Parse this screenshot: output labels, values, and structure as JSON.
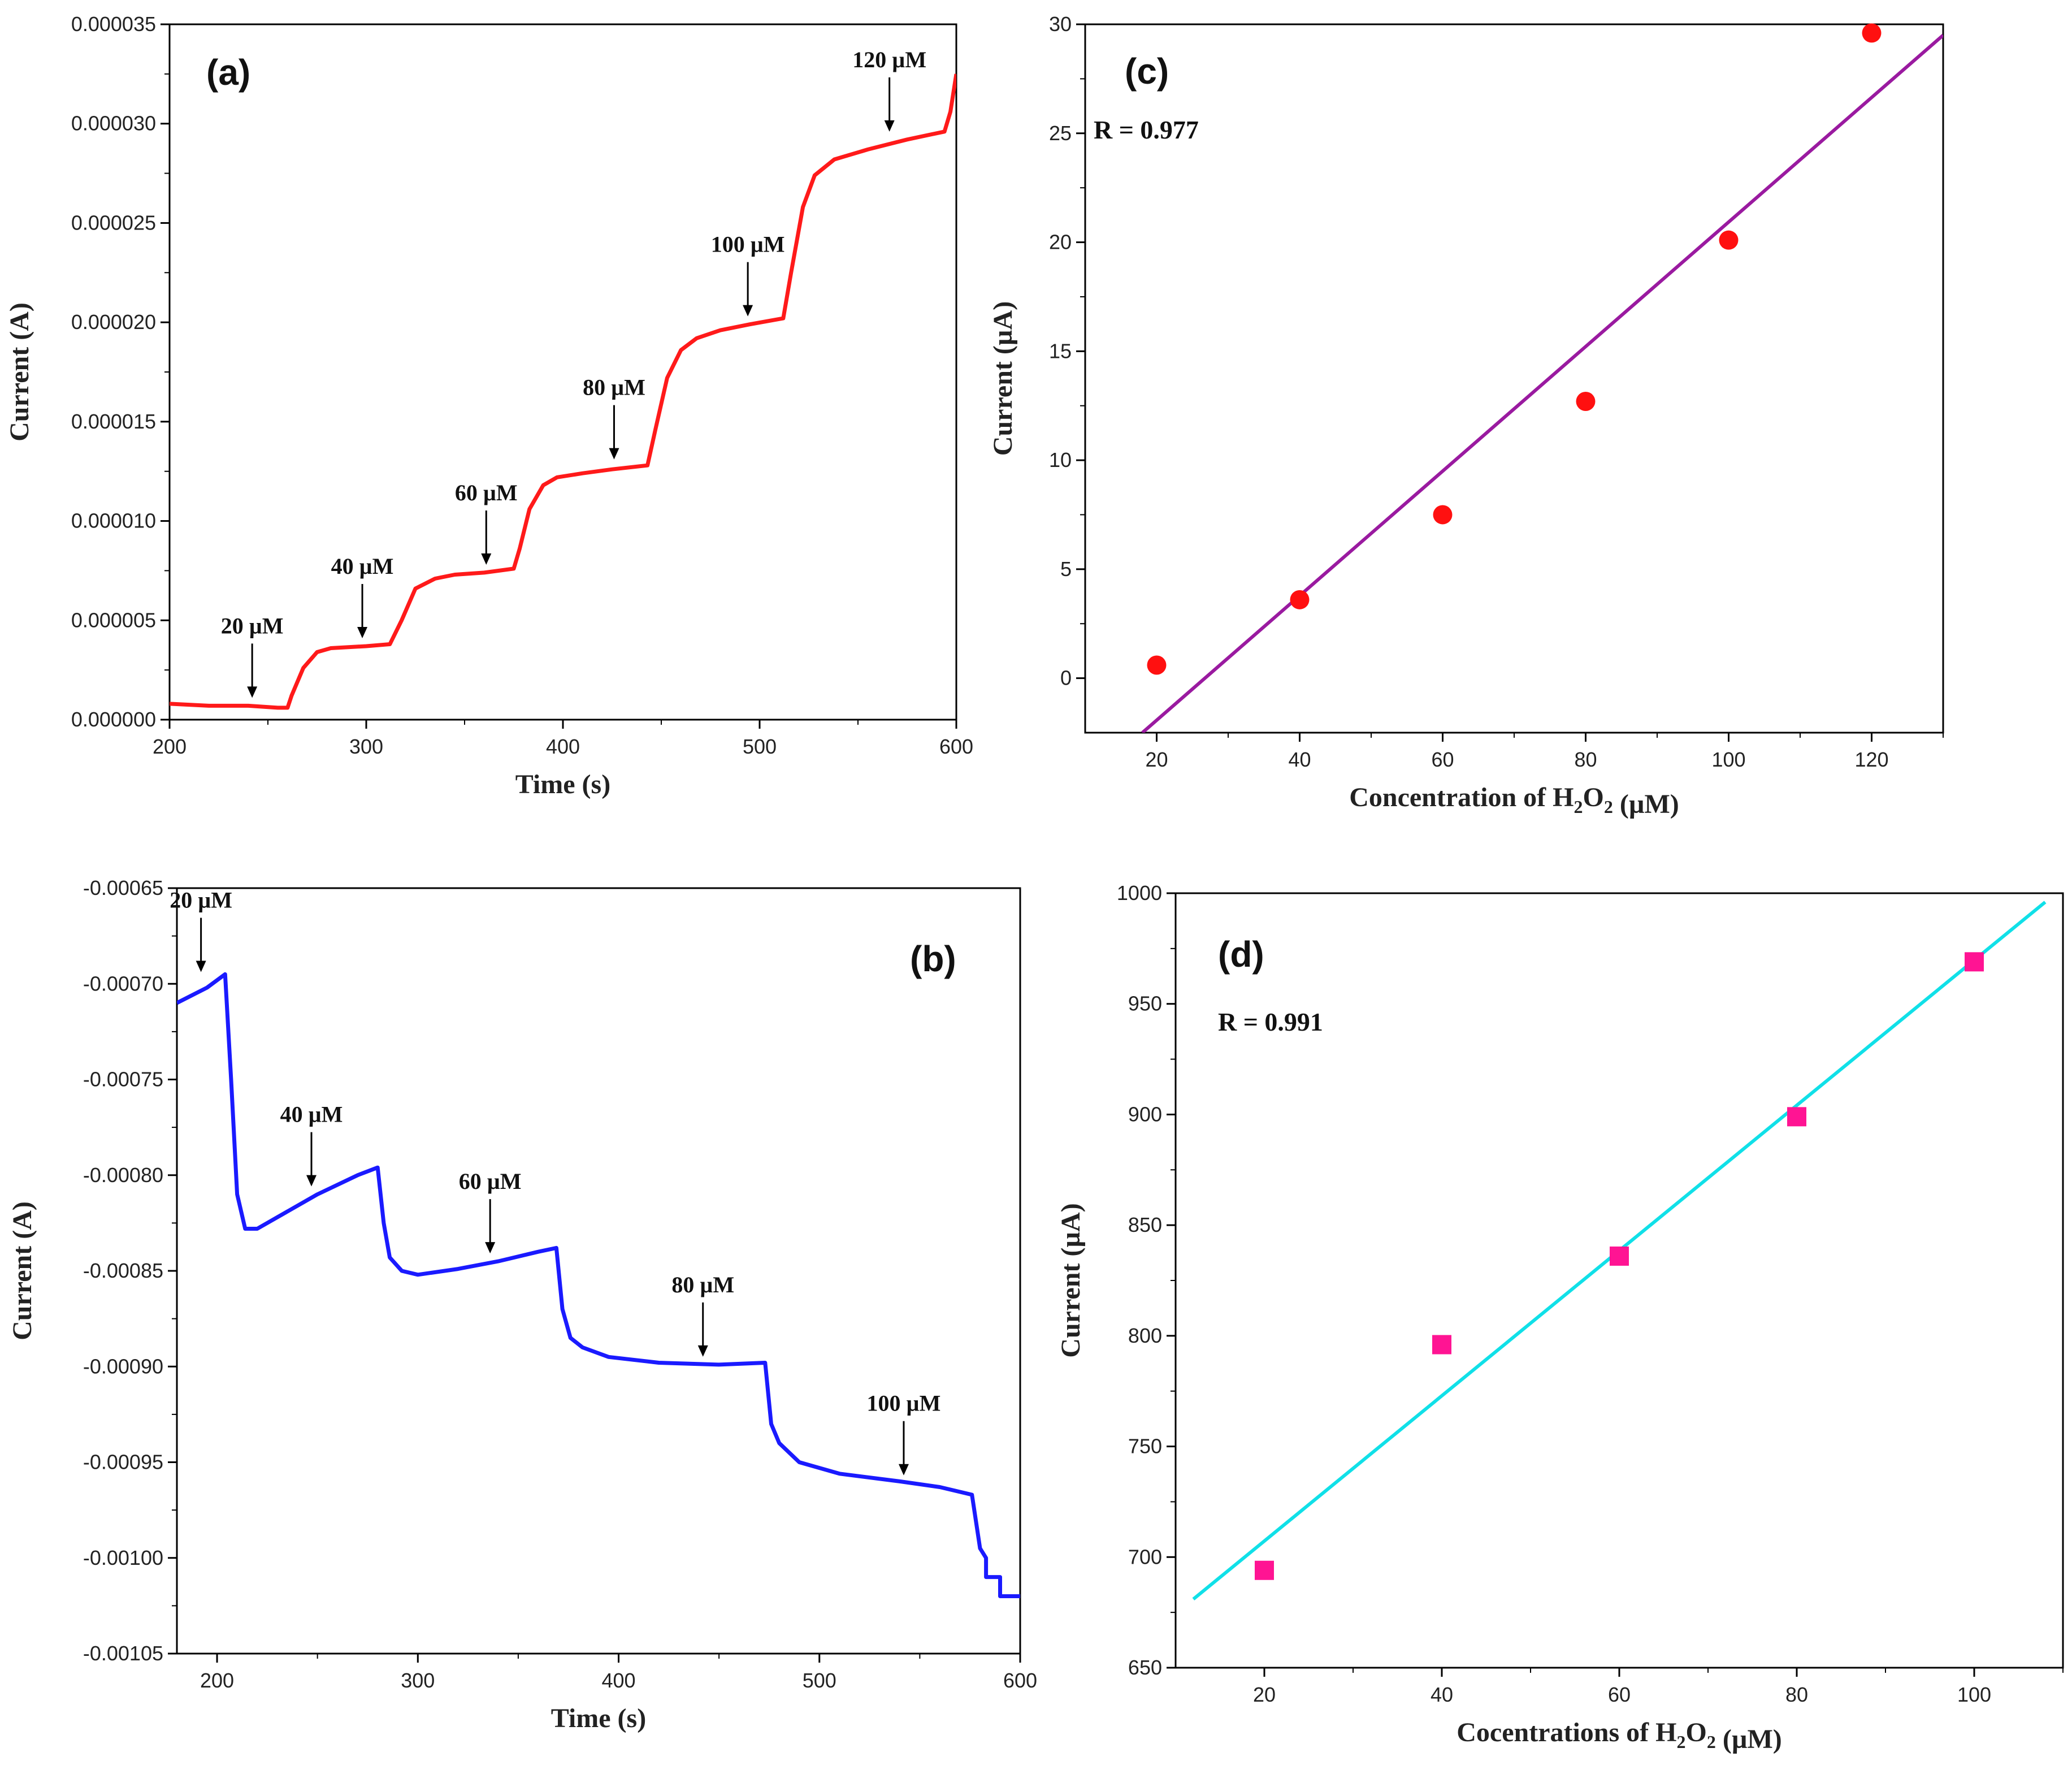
{
  "chart_data": [
    {
      "panel_label": "(a)",
      "type": "line",
      "xlabel": "Time (s)",
      "ylabel": "Current (A)",
      "xlim": [
        200,
        600
      ],
      "ylim": [
        0,
        3.5e-05
      ],
      "xticks": [
        200,
        300,
        400,
        500,
        600
      ],
      "xtick_labels": [
        "200",
        "300",
        "400",
        "500",
        "600"
      ],
      "yticks": [
        0,
        5e-06,
        1e-05,
        1.5e-05,
        2e-05,
        2.5e-05,
        3e-05,
        3.5e-05
      ],
      "ytick_labels": [
        "0.000000",
        "0.000005",
        "0.000010",
        "0.000015",
        "0.000020",
        "0.000025",
        "0.000030",
        "0.000035"
      ],
      "color": "#ff1a1a",
      "series": [
        {
          "x": [
            200,
            220,
            240,
            255,
            260,
            262,
            268,
            275,
            282,
            300,
            312,
            318,
            325,
            335,
            345,
            360,
            375,
            378,
            383,
            390,
            397,
            410,
            425,
            443,
            447,
            453,
            460,
            468,
            480,
            495,
            512,
            516,
            522,
            528,
            538,
            555,
            575,
            594,
            597,
            600
          ],
          "y": [
            8e-07,
            7e-07,
            7e-07,
            6e-07,
            6e-07,
            1.2e-06,
            2.6e-06,
            3.4e-06,
            3.6e-06,
            3.7e-06,
            3.8e-06,
            5e-06,
            6.6e-06,
            7.1e-06,
            7.3e-06,
            7.4e-06,
            7.6e-06,
            8.6e-06,
            1.06e-05,
            1.18e-05,
            1.22e-05,
            1.24e-05,
            1.26e-05,
            1.28e-05,
            1.46e-05,
            1.72e-05,
            1.86e-05,
            1.92e-05,
            1.96e-05,
            1.99e-05,
            2.02e-05,
            2.25e-05,
            2.58e-05,
            2.74e-05,
            2.82e-05,
            2.87e-05,
            2.92e-05,
            2.96e-05,
            3.06e-05,
            3.25e-05
          ]
        }
      ],
      "annotations": [
        {
          "text": "20 µM",
          "x": 242,
          "y": 7e-07
        },
        {
          "text": "40 µM",
          "x": 298,
          "y": 3.7e-06
        },
        {
          "text": "60 µM",
          "x": 361,
          "y": 7.4e-06
        },
        {
          "text": "80 µM",
          "x": 426,
          "y": 1.27e-05
        },
        {
          "text": "100 µM",
          "x": 494,
          "y": 1.99e-05
        },
        {
          "text": "120 µM",
          "x": 566,
          "y": 2.92e-05
        }
      ]
    },
    {
      "panel_label": "(c)",
      "type": "scatter",
      "xlabel": "Concentration of H2O2 (µM)",
      "ylabel": "Current (µA)",
      "xlim": [
        10,
        130
      ],
      "ylim": [
        -2.5,
        30
      ],
      "xticks": [
        20,
        40,
        60,
        80,
        100,
        120
      ],
      "xtick_labels": [
        "20",
        "40",
        "60",
        "80",
        "100",
        "120"
      ],
      "yticks": [
        0,
        5,
        10,
        15,
        20,
        25,
        30
      ],
      "ytick_labels": [
        "0",
        "5",
        "10",
        "15",
        "20",
        "25",
        "30"
      ],
      "x": [
        20,
        40,
        60,
        80,
        100,
        120
      ],
      "y": [
        0.6,
        3.6,
        7.5,
        12.7,
        20.1,
        29.6
      ],
      "marker_color": "#ff1010",
      "fit": {
        "x": [
          18,
          130
        ],
        "y": [
          -2.5,
          29.5
        ],
        "color": "#9a1aa0"
      },
      "annotation": "R = 0.977"
    },
    {
      "panel_label": "(b)",
      "type": "line",
      "xlabel": "Time (s)",
      "ylabel": "Current (A)",
      "xlim": [
        180,
        600
      ],
      "ylim": [
        -0.00105,
        -0.00065
      ],
      "xticks": [
        200,
        300,
        400,
        500,
        600
      ],
      "xtick_labels": [
        "200",
        "300",
        "400",
        "500",
        "600"
      ],
      "yticks": [
        -0.00065,
        -0.0007,
        -0.00075,
        -0.0008,
        -0.00085,
        -0.0009,
        -0.00095,
        -0.001,
        -0.00105
      ],
      "ytick_labels": [
        "-0.00065",
        "-0.00070",
        "-0.00075",
        "-0.00080",
        "-0.00085",
        "-0.00090",
        "-0.00095",
        "-0.00100",
        "-0.00105"
      ],
      "color": "#1a1aff",
      "series": [
        {
          "x": [
            180,
            195,
            204,
            207,
            210,
            214,
            220,
            230,
            250,
            270,
            280,
            283,
            286,
            292,
            300,
            320,
            340,
            360,
            369,
            372,
            376,
            382,
            395,
            420,
            450,
            473,
            476,
            480,
            490,
            510,
            540,
            560,
            576,
            580,
            583,
            583,
            590,
            590,
            595,
            595,
            600
          ],
          "y": [
            -0.00071,
            -0.000702,
            -0.000695,
            -0.00075,
            -0.00081,
            -0.000828,
            -0.000828,
            -0.000822,
            -0.00081,
            -0.0008,
            -0.000796,
            -0.000825,
            -0.000843,
            -0.00085,
            -0.000852,
            -0.000849,
            -0.000845,
            -0.00084,
            -0.000838,
            -0.00087,
            -0.000885,
            -0.00089,
            -0.000895,
            -0.000898,
            -0.000899,
            -0.000898,
            -0.00093,
            -0.00094,
            -0.00095,
            -0.000956,
            -0.00096,
            -0.000963,
            -0.000967,
            -0.000995,
            -0.001,
            -0.00101,
            -0.00101,
            -0.00102,
            -0.00102,
            -0.00102,
            -0.00102
          ]
        }
      ],
      "annotations": [
        {
          "text": "20 µM",
          "x": 192,
          "y": -0.000698
        },
        {
          "text": "40 µM",
          "x": 247,
          "y": -0.00081
        },
        {
          "text": "60 µM",
          "x": 336,
          "y": -0.000845
        },
        {
          "text": "80 µM",
          "x": 442,
          "y": -0.000899
        },
        {
          "text": "100 µM",
          "x": 542,
          "y": -0.000961
        }
      ]
    },
    {
      "panel_label": "(d)",
      "type": "scatter",
      "xlabel": "Cocentrations of H2O2 (µM)",
      "ylabel": "Current (µA)",
      "xlim": [
        10,
        110
      ],
      "ylim": [
        650,
        1000
      ],
      "xticks": [
        20,
        40,
        60,
        80,
        100
      ],
      "xtick_labels": [
        "20",
        "40",
        "60",
        "80",
        "100"
      ],
      "yticks": [
        650,
        700,
        750,
        800,
        850,
        900,
        950,
        1000
      ],
      "ytick_labels": [
        "650",
        "700",
        "750",
        "800",
        "850",
        "900",
        "950",
        "1000"
      ],
      "x": [
        20,
        40,
        60,
        80,
        100
      ],
      "y": [
        694,
        796,
        836,
        899,
        969
      ],
      "marker_color": "#ff1493",
      "fit": {
        "x": [
          12,
          108
        ],
        "y": [
          681,
          996
        ],
        "color": "#10e0e8"
      },
      "annotation": "R = 0.991"
    }
  ]
}
